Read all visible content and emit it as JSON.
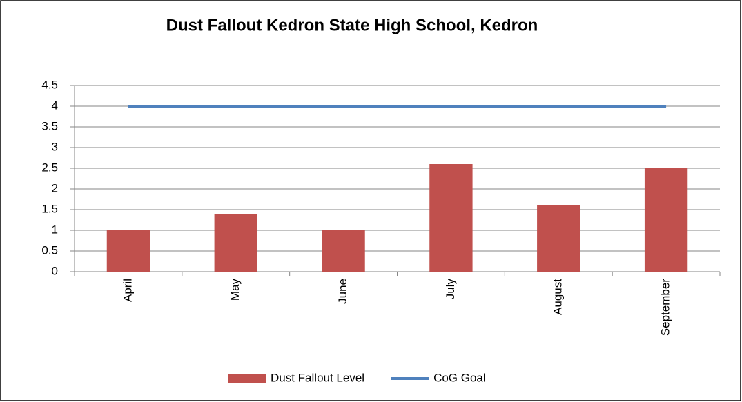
{
  "chart_data": {
    "type": "bar",
    "title": "Dust Fallout Kedron State High School, Kedron",
    "categories": [
      "April",
      "May",
      "June",
      "July",
      "August",
      "September"
    ],
    "series": [
      {
        "name": "Dust Fallout Level",
        "type": "bar",
        "color": "#c0504d",
        "values": [
          1,
          1.4,
          1,
          2.6,
          1.6,
          2.5
        ]
      },
      {
        "name": "CoG Goal",
        "type": "line",
        "color": "#4f81bd",
        "values": [
          4,
          4,
          4,
          4,
          4,
          4
        ]
      }
    ],
    "ylim": [
      0,
      4.5
    ],
    "yticks": [
      0,
      0.5,
      1,
      1.5,
      2,
      2.5,
      3,
      3.5,
      4,
      4.5
    ],
    "grid": true,
    "legend": "bottom"
  }
}
